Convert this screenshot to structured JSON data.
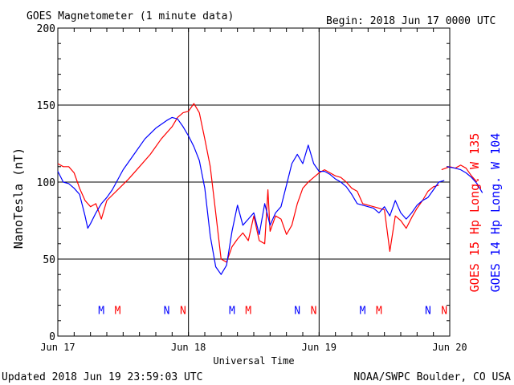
{
  "header": {
    "title": "GOES Magnetometer (1 minute data)",
    "begin": "Begin:  2018 Jun 17 0000 UTC"
  },
  "footer": {
    "updated": "Updated 2018 Jun 19 23:59:03 UTC",
    "credit": "NOAA/SWPC Boulder, CO USA"
  },
  "colors": {
    "goes15": "#ff0000",
    "goes14": "#0000ff",
    "grid": "#000000"
  },
  "chart_data": {
    "type": "line",
    "ylabel": "NanoTesla (nT)",
    "xlabel": "Universal Time",
    "ylim": [
      0,
      200
    ],
    "xlim": [
      0,
      72
    ],
    "x_unit": "hours since 2018 Jun 17 0000 UTC",
    "yticks": [
      0,
      50,
      100,
      150,
      200
    ],
    "xticks": [
      {
        "x": 0,
        "label": "Jun 17"
      },
      {
        "x": 24,
        "label": "Jun 18"
      },
      {
        "x": 48,
        "label": "Jun 19"
      },
      {
        "x": 72,
        "label": "Jun 20"
      }
    ],
    "grid": true,
    "legend": [
      {
        "label": "GOES 15 Hp  Long. W 135",
        "color": "#ff0000"
      },
      {
        "label": "GOES 14 Hp  Long. W 104",
        "color": "#0000ff"
      }
    ],
    "series": [
      {
        "name": "GOES 15 Hp",
        "color": "#ff0000",
        "points": [
          [
            0,
            112
          ],
          [
            1,
            110
          ],
          [
            2,
            110
          ],
          [
            3,
            106
          ],
          [
            4,
            96
          ],
          [
            5,
            88
          ],
          [
            6,
            84
          ],
          [
            7,
            86
          ],
          [
            8,
            76
          ],
          [
            9,
            88
          ],
          [
            11,
            95
          ],
          [
            13,
            102
          ],
          [
            15,
            110
          ],
          [
            17,
            118
          ],
          [
            19,
            128
          ],
          [
            21,
            136
          ],
          [
            22,
            142
          ],
          [
            23,
            145
          ],
          [
            24,
            146
          ],
          [
            25,
            151
          ],
          [
            26,
            145
          ],
          [
            27,
            128
          ],
          [
            28,
            110
          ],
          [
            29,
            80
          ],
          [
            30,
            50
          ],
          [
            31,
            48
          ],
          [
            32,
            58
          ],
          [
            33,
            63
          ],
          [
            34,
            67
          ],
          [
            35,
            62
          ],
          [
            36,
            78
          ],
          [
            37,
            62
          ],
          [
            38,
            60
          ],
          [
            38.6,
            95
          ],
          [
            39,
            68
          ],
          [
            40,
            78
          ],
          [
            41,
            76
          ],
          [
            42,
            66
          ],
          [
            43,
            72
          ],
          [
            44,
            86
          ],
          [
            45,
            96
          ],
          [
            46,
            100
          ],
          [
            47,
            103
          ],
          [
            48,
            106
          ],
          [
            49,
            108
          ],
          [
            50,
            106
          ],
          [
            51,
            104
          ],
          [
            52,
            103
          ],
          [
            53,
            100
          ],
          [
            54,
            96
          ],
          [
            55,
            94
          ],
          [
            56,
            86
          ],
          [
            57,
            85
          ],
          [
            58,
            84
          ],
          [
            59,
            83
          ],
          [
            60,
            82
          ],
          [
            61,
            55
          ],
          [
            62,
            78
          ],
          [
            63,
            75
          ],
          [
            64,
            70
          ],
          [
            65,
            77
          ],
          [
            66,
            83
          ],
          [
            67,
            88
          ],
          [
            68,
            94
          ],
          [
            69,
            97
          ],
          [
            70,
            98
          ]
        ],
        "series_b": [
          [
            70.5,
            108
          ],
          [
            72,
            110
          ],
          [
            73,
            109
          ],
          [
            74,
            111
          ],
          [
            75,
            109
          ],
          [
            76,
            104
          ],
          [
            77,
            100
          ]
        ]
      },
      {
        "name": "GOES 14 Hp",
        "color": "#0000ff",
        "points": [
          [
            0,
            107
          ],
          [
            1,
            100
          ],
          [
            2,
            99
          ],
          [
            3,
            96
          ],
          [
            4,
            92
          ],
          [
            5,
            78
          ],
          [
            5.5,
            70
          ],
          [
            6,
            73
          ],
          [
            7,
            80
          ],
          [
            8,
            86
          ],
          [
            9,
            90
          ],
          [
            10,
            95
          ],
          [
            12,
            108
          ],
          [
            14,
            118
          ],
          [
            16,
            128
          ],
          [
            18,
            135
          ],
          [
            20,
            140
          ],
          [
            21,
            142
          ],
          [
            22,
            141
          ],
          [
            23,
            136
          ],
          [
            24,
            130
          ],
          [
            25,
            123
          ],
          [
            26,
            114
          ],
          [
            27,
            96
          ],
          [
            28,
            65
          ],
          [
            29,
            45
          ],
          [
            30,
            40
          ],
          [
            31,
            46
          ],
          [
            32,
            68
          ],
          [
            33,
            85
          ],
          [
            34,
            72
          ],
          [
            35,
            76
          ],
          [
            36,
            80
          ],
          [
            37,
            66
          ],
          [
            38,
            86
          ],
          [
            39,
            72
          ],
          [
            40,
            80
          ],
          [
            41,
            84
          ],
          [
            42,
            98
          ],
          [
            43,
            112
          ],
          [
            44,
            118
          ],
          [
            45,
            112
          ],
          [
            46,
            124
          ],
          [
            47,
            112
          ],
          [
            48,
            107
          ],
          [
            49,
            107
          ],
          [
            50,
            105
          ],
          [
            51,
            102
          ],
          [
            52,
            100
          ],
          [
            53,
            97
          ],
          [
            54,
            92
          ],
          [
            55,
            86
          ],
          [
            56,
            85
          ],
          [
            57,
            84
          ],
          [
            58,
            83
          ],
          [
            59,
            80
          ],
          [
            60,
            84
          ],
          [
            61,
            78
          ],
          [
            62,
            88
          ],
          [
            63,
            80
          ],
          [
            64,
            76
          ],
          [
            65,
            80
          ],
          [
            66,
            85
          ],
          [
            67,
            88
          ],
          [
            68,
            90
          ],
          [
            69,
            95
          ],
          [
            70,
            100
          ],
          [
            71,
            101
          ]
        ],
        "series_b": [
          [
            71.5,
            110
          ],
          [
            73,
            109
          ],
          [
            74,
            108
          ],
          [
            75,
            106
          ],
          [
            76,
            103
          ],
          [
            77,
            99
          ],
          [
            78,
            93
          ]
        ]
      }
    ],
    "markers": {
      "y_value": 17,
      "items": [
        {
          "x": 8.0,
          "label": "M",
          "color": "#0000ff"
        },
        {
          "x": 11.0,
          "label": "M",
          "color": "#ff0000"
        },
        {
          "x": 20.0,
          "label": "N",
          "color": "#0000ff"
        },
        {
          "x": 23.0,
          "label": "N",
          "color": "#ff0000"
        },
        {
          "x": 32.0,
          "label": "M",
          "color": "#0000ff"
        },
        {
          "x": 35.0,
          "label": "M",
          "color": "#ff0000"
        },
        {
          "x": 44.0,
          "label": "N",
          "color": "#0000ff"
        },
        {
          "x": 47.0,
          "label": "N",
          "color": "#ff0000"
        },
        {
          "x": 56.0,
          "label": "M",
          "color": "#0000ff"
        },
        {
          "x": 59.0,
          "label": "M",
          "color": "#ff0000"
        },
        {
          "x": 68.0,
          "label": "N",
          "color": "#0000ff"
        },
        {
          "x": 71.0,
          "label": "N",
          "color": "#ff0000"
        }
      ]
    }
  }
}
